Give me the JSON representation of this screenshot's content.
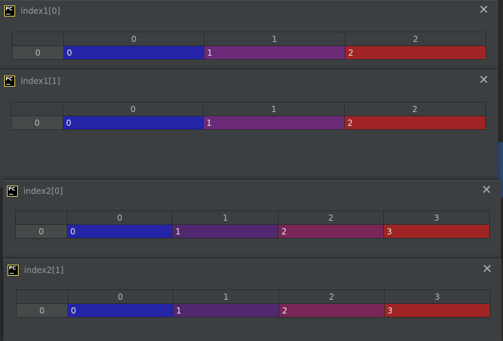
{
  "windows": [
    {
      "title": "index1[0]",
      "columns": [
        "0",
        "1",
        "2"
      ],
      "row_label": "0",
      "cells": [
        {
          "value": "0",
          "color": "#2424a8"
        },
        {
          "value": "1",
          "color": "#6a2a78"
        },
        {
          "value": "2",
          "color": "#a02424"
        }
      ]
    },
    {
      "title": "index1[1]",
      "columns": [
        "0",
        "1",
        "2"
      ],
      "row_label": "0",
      "cells": [
        {
          "value": "0",
          "color": "#2424a8"
        },
        {
          "value": "1",
          "color": "#6a2a78"
        },
        {
          "value": "2",
          "color": "#a02424"
        }
      ]
    },
    {
      "title": "index2[0]",
      "columns": [
        "0",
        "1",
        "2",
        "3"
      ],
      "row_label": "0",
      "cells": [
        {
          "value": "0",
          "color": "#2424a8"
        },
        {
          "value": "1",
          "color": "#51286f"
        },
        {
          "value": "2",
          "color": "#7a2658"
        },
        {
          "value": "3",
          "color": "#a02424"
        }
      ]
    },
    {
      "title": "index2[1]",
      "columns": [
        "0",
        "1",
        "2",
        "3"
      ],
      "row_label": "0",
      "cells": [
        {
          "value": "0",
          "color": "#2424a8"
        },
        {
          "value": "1",
          "color": "#51286f"
        },
        {
          "value": "2",
          "color": "#7a2658"
        },
        {
          "value": "3",
          "color": "#a02424"
        }
      ]
    }
  ],
  "icons": {
    "app": "pycharm-icon",
    "close": "close-icon"
  }
}
